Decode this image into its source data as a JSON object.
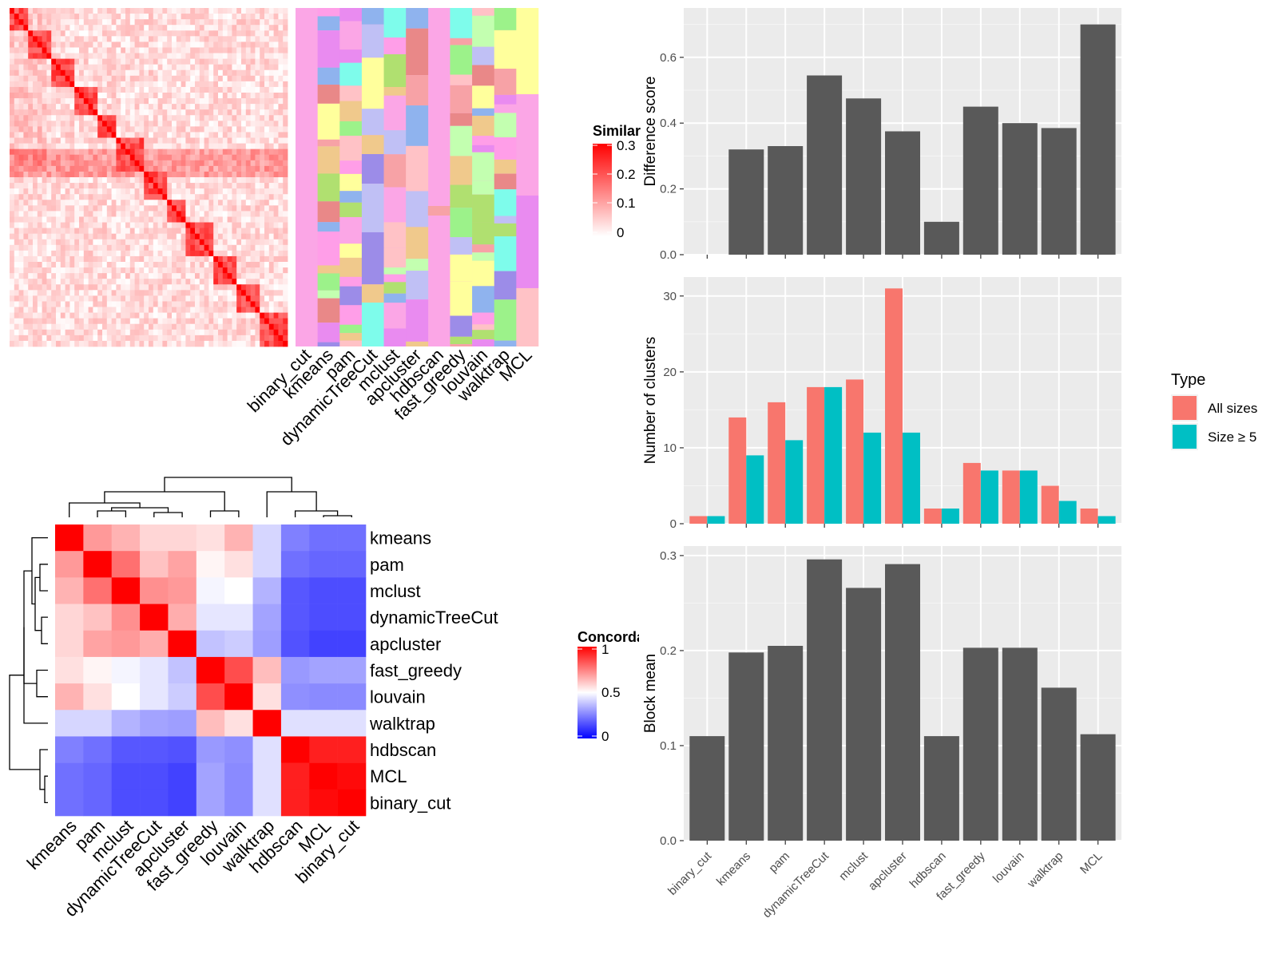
{
  "methods_top": [
    "binary_cut",
    "kmeans",
    "pam",
    "dynamicTreeCut",
    "mclust",
    "apcluster",
    "hdbscan",
    "fast_greedy",
    "louvain",
    "walktrap",
    "MCL"
  ],
  "similarity_legend": {
    "title": "Similarity",
    "ticks": [
      "0.3",
      "0.2",
      "0.1",
      "0"
    ],
    "colors": [
      "#ffffff",
      "#ff0000"
    ]
  },
  "concordance_legend": {
    "title": "Concordance",
    "ticks": [
      "1",
      "0.5",
      "0"
    ],
    "colors": [
      "#0000ff",
      "#ffffff",
      "#ff0000"
    ]
  },
  "concordance_order": [
    "kmeans",
    "pam",
    "mclust",
    "dynamicTreeCut",
    "apcluster",
    "fast_greedy",
    "louvain",
    "walktrap",
    "hdbscan",
    "MCL",
    "binary_cut"
  ],
  "type_legend": {
    "title": "Type",
    "items": [
      {
        "label": "All sizes",
        "color": "#F8766D"
      },
      {
        "label": "Size ≥ 5",
        "color": "#00BFC4"
      }
    ]
  },
  "chart_data": [
    {
      "type": "bar",
      "categories": [
        "binary_cut",
        "kmeans",
        "pam",
        "dynamicTreeCut",
        "mclust",
        "apcluster",
        "hdbscan",
        "fast_greedy",
        "louvain",
        "walktrap",
        "MCL"
      ],
      "values": [
        0,
        0.32,
        0.33,
        0.545,
        0.475,
        0.375,
        0.1,
        0.45,
        0.4,
        0.385,
        0.7
      ],
      "ylabel": "Difference score",
      "ylim": [
        0,
        0.75
      ],
      "yticks": [
        "0.0",
        "0.2",
        "0.4",
        "0.6"
      ],
      "ytick_values": [
        0,
        0.2,
        0.4,
        0.6
      ],
      "bar_color": "#595959",
      "grid": true
    },
    {
      "type": "bar",
      "categories": [
        "binary_cut",
        "kmeans",
        "pam",
        "dynamicTreeCut",
        "mclust",
        "apcluster",
        "hdbscan",
        "fast_greedy",
        "louvain",
        "walktrap",
        "MCL"
      ],
      "series": [
        {
          "name": "All sizes",
          "values": [
            1,
            14,
            16,
            18,
            19,
            31,
            2,
            8,
            7,
            5,
            2
          ],
          "color": "#F8766D"
        },
        {
          "name": "Size ≥ 5",
          "values": [
            1,
            9,
            11,
            18,
            12,
            12,
            2,
            7,
            7,
            3,
            1
          ],
          "color": "#00BFC4"
        }
      ],
      "ylabel": "Number of clusters",
      "ylim": [
        0,
        32.5
      ],
      "yticks": [
        "0",
        "10",
        "20",
        "30"
      ],
      "ytick_values": [
        0,
        10,
        20,
        30
      ],
      "legend_title": "Type",
      "legend": "right",
      "grid": true
    },
    {
      "type": "bar",
      "categories": [
        "binary_cut",
        "kmeans",
        "pam",
        "dynamicTreeCut",
        "mclust",
        "apcluster",
        "hdbscan",
        "fast_greedy",
        "louvain",
        "walktrap",
        "MCL"
      ],
      "values": [
        0.11,
        0.198,
        0.205,
        0.296,
        0.266,
        0.291,
        0.11,
        0.203,
        0.203,
        0.161,
        0.112
      ],
      "ylabel": "Block mean",
      "ylim": [
        0,
        0.31
      ],
      "yticks": [
        "0.0",
        "0.1",
        "0.2",
        "0.3"
      ],
      "ytick_values": [
        0,
        0.1,
        0.2,
        0.3
      ],
      "bar_color": "#595959",
      "grid": true
    },
    {
      "type": "heatmap",
      "rows": [
        "kmeans",
        "pam",
        "mclust",
        "dynamicTreeCut",
        "apcluster",
        "fast_greedy",
        "louvain",
        "walktrap",
        "hdbscan",
        "MCL",
        "binary_cut"
      ],
      "cols": [
        "kmeans",
        "pam",
        "mclust",
        "dynamicTreeCut",
        "apcluster",
        "fast_greedy",
        "louvain",
        "walktrap",
        "hdbscan",
        "MCL",
        "binary_cut"
      ],
      "values": [
        [
          1.0,
          0.7,
          0.65,
          0.58,
          0.58,
          0.56,
          0.65,
          0.42,
          0.25,
          0.22,
          0.22
        ],
        [
          0.7,
          1.0,
          0.78,
          0.62,
          0.68,
          0.52,
          0.56,
          0.42,
          0.22,
          0.2,
          0.2
        ],
        [
          0.65,
          0.78,
          1.0,
          0.72,
          0.7,
          0.48,
          0.5,
          0.35,
          0.17,
          0.15,
          0.15
        ],
        [
          0.58,
          0.62,
          0.72,
          1.0,
          0.66,
          0.45,
          0.45,
          0.32,
          0.17,
          0.15,
          0.15
        ],
        [
          0.58,
          0.68,
          0.7,
          0.66,
          1.0,
          0.38,
          0.4,
          0.31,
          0.16,
          0.13,
          0.13
        ],
        [
          0.56,
          0.52,
          0.48,
          0.45,
          0.38,
          1.0,
          0.85,
          0.63,
          0.3,
          0.32,
          0.32
        ],
        [
          0.65,
          0.56,
          0.5,
          0.45,
          0.4,
          0.85,
          1.0,
          0.56,
          0.28,
          0.27,
          0.27
        ],
        [
          0.42,
          0.42,
          0.35,
          0.32,
          0.31,
          0.63,
          0.56,
          1.0,
          0.44,
          0.44,
          0.44
        ],
        [
          0.25,
          0.22,
          0.17,
          0.17,
          0.16,
          0.3,
          0.28,
          0.44,
          1.0,
          0.94,
          0.94
        ],
        [
          0.22,
          0.2,
          0.15,
          0.15,
          0.13,
          0.32,
          0.27,
          0.44,
          0.94,
          1.0,
          0.98
        ],
        [
          0.22,
          0.2,
          0.15,
          0.15,
          0.13,
          0.32,
          0.27,
          0.44,
          0.94,
          0.98,
          1.0
        ]
      ],
      "legend_title": "Concordance",
      "range": [
        0,
        1
      ]
    }
  ]
}
